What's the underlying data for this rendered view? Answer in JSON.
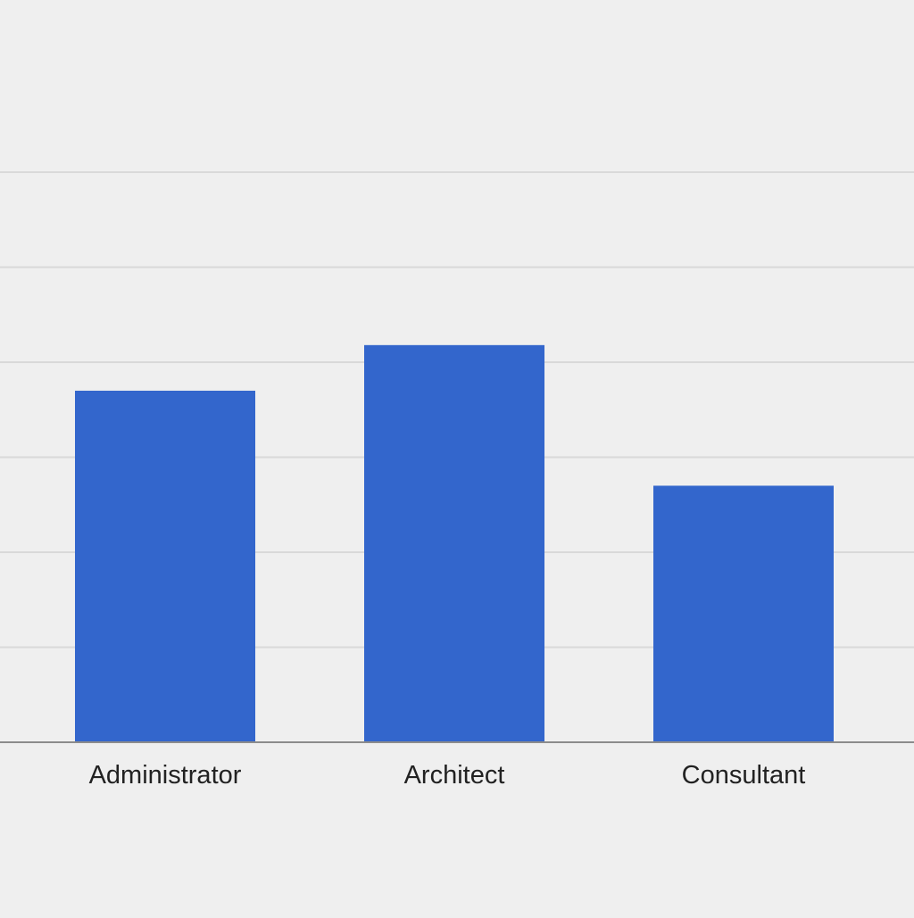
{
  "chart_data": {
    "type": "bar",
    "categories": [
      "Administrator",
      "Architect",
      "Consultant"
    ],
    "values": [
      3.7,
      4.18,
      2.7
    ],
    "ylim": [
      0,
      6
    ],
    "gridlines": [
      1,
      2,
      3,
      4,
      5,
      6
    ],
    "grid": true,
    "legend": "none",
    "title": "",
    "xlabel": "",
    "ylabel": ""
  },
  "colors": {
    "background": "#efefef",
    "bar": "#3366cc",
    "gridline": "#d9d9d9",
    "axis": "#8c8c8c",
    "label": "#222222"
  }
}
